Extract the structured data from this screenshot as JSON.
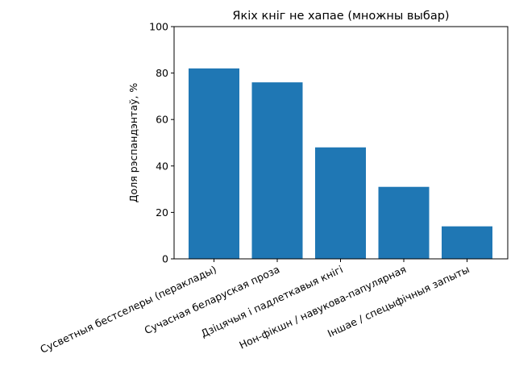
{
  "chart_data": {
    "type": "bar",
    "title": "Якіх кніг не хапае (множны выбар)",
    "xlabel": "",
    "ylabel": "Доля рэспандэнтаў, %",
    "ylim": [
      0,
      100
    ],
    "yticks": [
      0,
      20,
      40,
      60,
      80,
      100
    ],
    "grid": false,
    "legend": null,
    "bar_color": "#1f77b4",
    "categories": [
      "Сусветныя бестселеры (пераклады)",
      "Сучасная беларуская проза",
      "Дзіцячыя і падлеткавыя кнігі",
      "Нон-фікшн / навукова-папулярная",
      "Іншае / спецыфічныя запыты"
    ],
    "values": [
      82,
      76,
      48,
      31,
      14
    ]
  }
}
